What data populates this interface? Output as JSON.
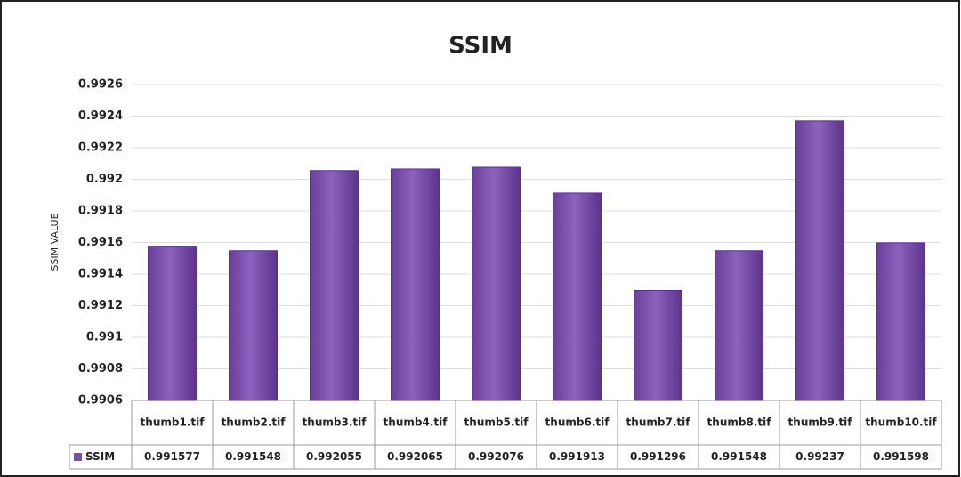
{
  "chart_data": {
    "type": "bar",
    "title": "SSIM",
    "y_label": "SSIM VALUE",
    "categories": [
      "thumb1.tif",
      "thumb2.tif",
      "thumb3.tif",
      "thumb4.tif",
      "thumb5.tif",
      "thumb6.tif",
      "thumb7.tif",
      "thumb8.tif",
      "thumb9.tif",
      "thumb10.tif"
    ],
    "series": [
      {
        "name": "SSIM",
        "color": "#7b4fa8",
        "values": [
          0.991577,
          0.991548,
          0.992055,
          0.992065,
          0.992076,
          0.991913,
          0.991296,
          0.991548,
          0.99237,
          0.991598
        ]
      }
    ],
    "ylim": [
      0.9906,
      0.9926
    ],
    "yticks": [
      0.9906,
      0.9908,
      0.991,
      0.9912,
      0.9914,
      0.9916,
      0.9918,
      0.992,
      0.9922,
      0.9924,
      0.9926
    ],
    "grid": true
  }
}
